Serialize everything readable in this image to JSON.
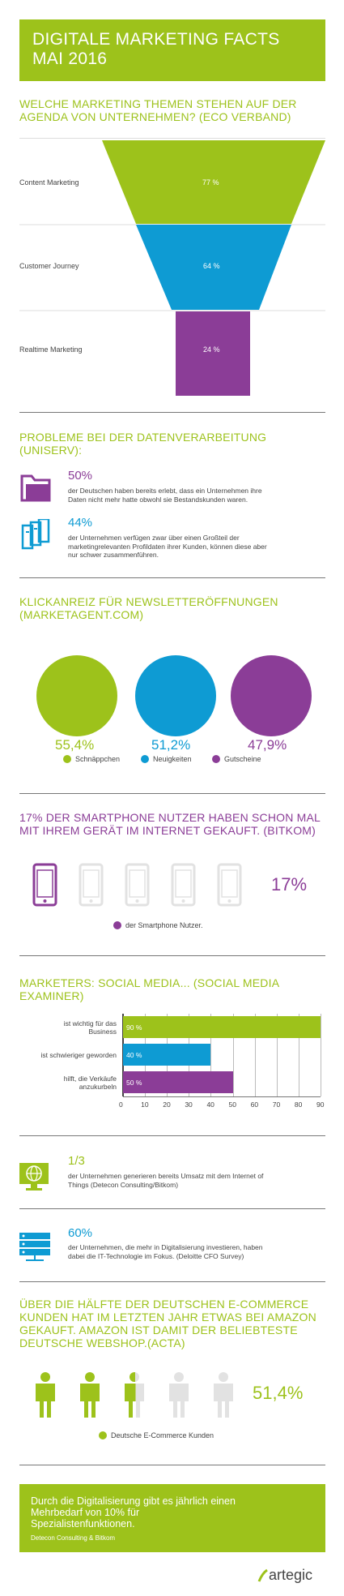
{
  "header": {
    "line1": "DIGITALE MARKETING FACTS",
    "line2": "MAI 2016"
  },
  "funnel": {
    "title_line1": "WELCHE MARKETING THEMEN STEHEN AUF DER",
    "title_line2": "AGENDA VON UNTERNEHMEN? (ECO VERBAND)",
    "items": [
      {
        "label": "Content Marketing",
        "value": "77 %",
        "color": "#9dc21b"
      },
      {
        "label": "Customer Journey",
        "value": "64 %",
        "color": "#0e9bd3"
      },
      {
        "label": "Realtime Marketing",
        "value": "24 %",
        "color": "#8b3d97"
      }
    ]
  },
  "problems": {
    "title_line1": "PROBLEME BEI DER DATENVERARBEITUNG",
    "title_line2": "(UNISERV):",
    "items": [
      {
        "value": "50%",
        "icon": "folder-icon",
        "color": "#8b3d97",
        "text_line1": "der Deutschen haben bereits erlebt, dass ein Unternehmen ihre",
        "text_line2": "Daten nicht mehr hatte obwohl sie Bestandskunden waren.",
        "text_line3": ""
      },
      {
        "value": "44%",
        "icon": "data-stack-icon",
        "color": "#0e9bd3",
        "text_line1": "der Unternehmen verfügen zwar über einen Großteil der",
        "text_line2": "marketingrelevanten Profildaten ihrer Kunden, können diese aber",
        "text_line3": "nur schwer zusammenführen."
      }
    ]
  },
  "newsletter": {
    "title_line1": "KLICKANREIZ FÜR NEWSLETTERÖFFNUNGEN",
    "title_line2": "(MARKETAGENT.COM)",
    "circles": [
      {
        "value": "55,4%",
        "label": "Schnäppchen",
        "color": "#9dc21b"
      },
      {
        "value": "51,2%",
        "label": "Neuigkeiten",
        "color": "#0e9bd3"
      },
      {
        "value": "47,9%",
        "label": "Gutscheine",
        "color": "#8b3d97"
      }
    ]
  },
  "smartphone": {
    "title_line1": "17% DER SMARTPHONE NUTZER HABEN SCHON MAL",
    "title_line2": "MIT IHREM GERÄT IM INTERNET GEKAUFT. (BITKOM)",
    "value": "17%",
    "highlighted": 1,
    "total": 5,
    "legend": "der Smartphone Nutzer.",
    "color": "#8b3d97"
  },
  "social": {
    "title_line1": "MARKETERS: SOCIAL MEDIA... (SOCIAL MEDIA",
    "title_line2": "EXAMINER)"
  },
  "chart_data": {
    "type": "bar",
    "orientation": "horizontal",
    "categories": [
      [
        "ist wichtig für das",
        "Business"
      ],
      [
        "ist schwieriger geworden"
      ],
      [
        "hilft, die Verkäufe",
        "anzukurbeln"
      ]
    ],
    "values": [
      90,
      40,
      50
    ],
    "value_labels": [
      "90 %",
      "40 %",
      "50 %"
    ],
    "colors": [
      "#9dc21b",
      "#0e9bd3",
      "#8b3d97"
    ],
    "xlim": [
      0,
      90
    ],
    "ticks": [
      "0",
      "10",
      "20",
      "30",
      "40",
      "50",
      "60",
      "70",
      "80",
      "90"
    ],
    "grid": true
  },
  "iot": {
    "value": "1/3",
    "icon": "globe-monitor-icon",
    "color": "#9dc21b",
    "text_line1": "der Unternehmen generieren bereits Umsatz mit dem Internet of",
    "text_line2": "Things (Detecon Consulting/Bitkom)"
  },
  "digital": {
    "value": "60%",
    "icon": "server-icon",
    "color": "#0e9bd3",
    "text_line1": "der Unternehmen, die mehr in Digitalisierung investieren, haben",
    "text_line2": "dabei die IT-Technologie im Fokus. (Deloitte CFO Survey)"
  },
  "ecommerce": {
    "title_line1": "ÜBER DIE HÄLFTE DER DEUTSCHEN E-COMMERCE",
    "title_line2": "KUNDEN HAT IM LETZTEN JAHR ETWAS BEI AMAZON",
    "title_line3": "GEKAUFT. AMAZON IST DAMIT DER BELIEBTESTE",
    "title_line4": "DEUTSCHE WEBSHOP.(ACTA)",
    "value": "51,4%",
    "filled_fraction": 0.514,
    "legend": "Deutsche E-Commerce Kunden",
    "color": "#9dc21b"
  },
  "footer": {
    "line1": "Durch die Digitalisierung gibt es jährlich einen",
    "line2": "Mehrbedarf von 10% für",
    "line3": "Spezialistenfunktionen.",
    "source": "Detecon Consulting & Bitkom"
  },
  "brand": {
    "name": "artegic"
  }
}
